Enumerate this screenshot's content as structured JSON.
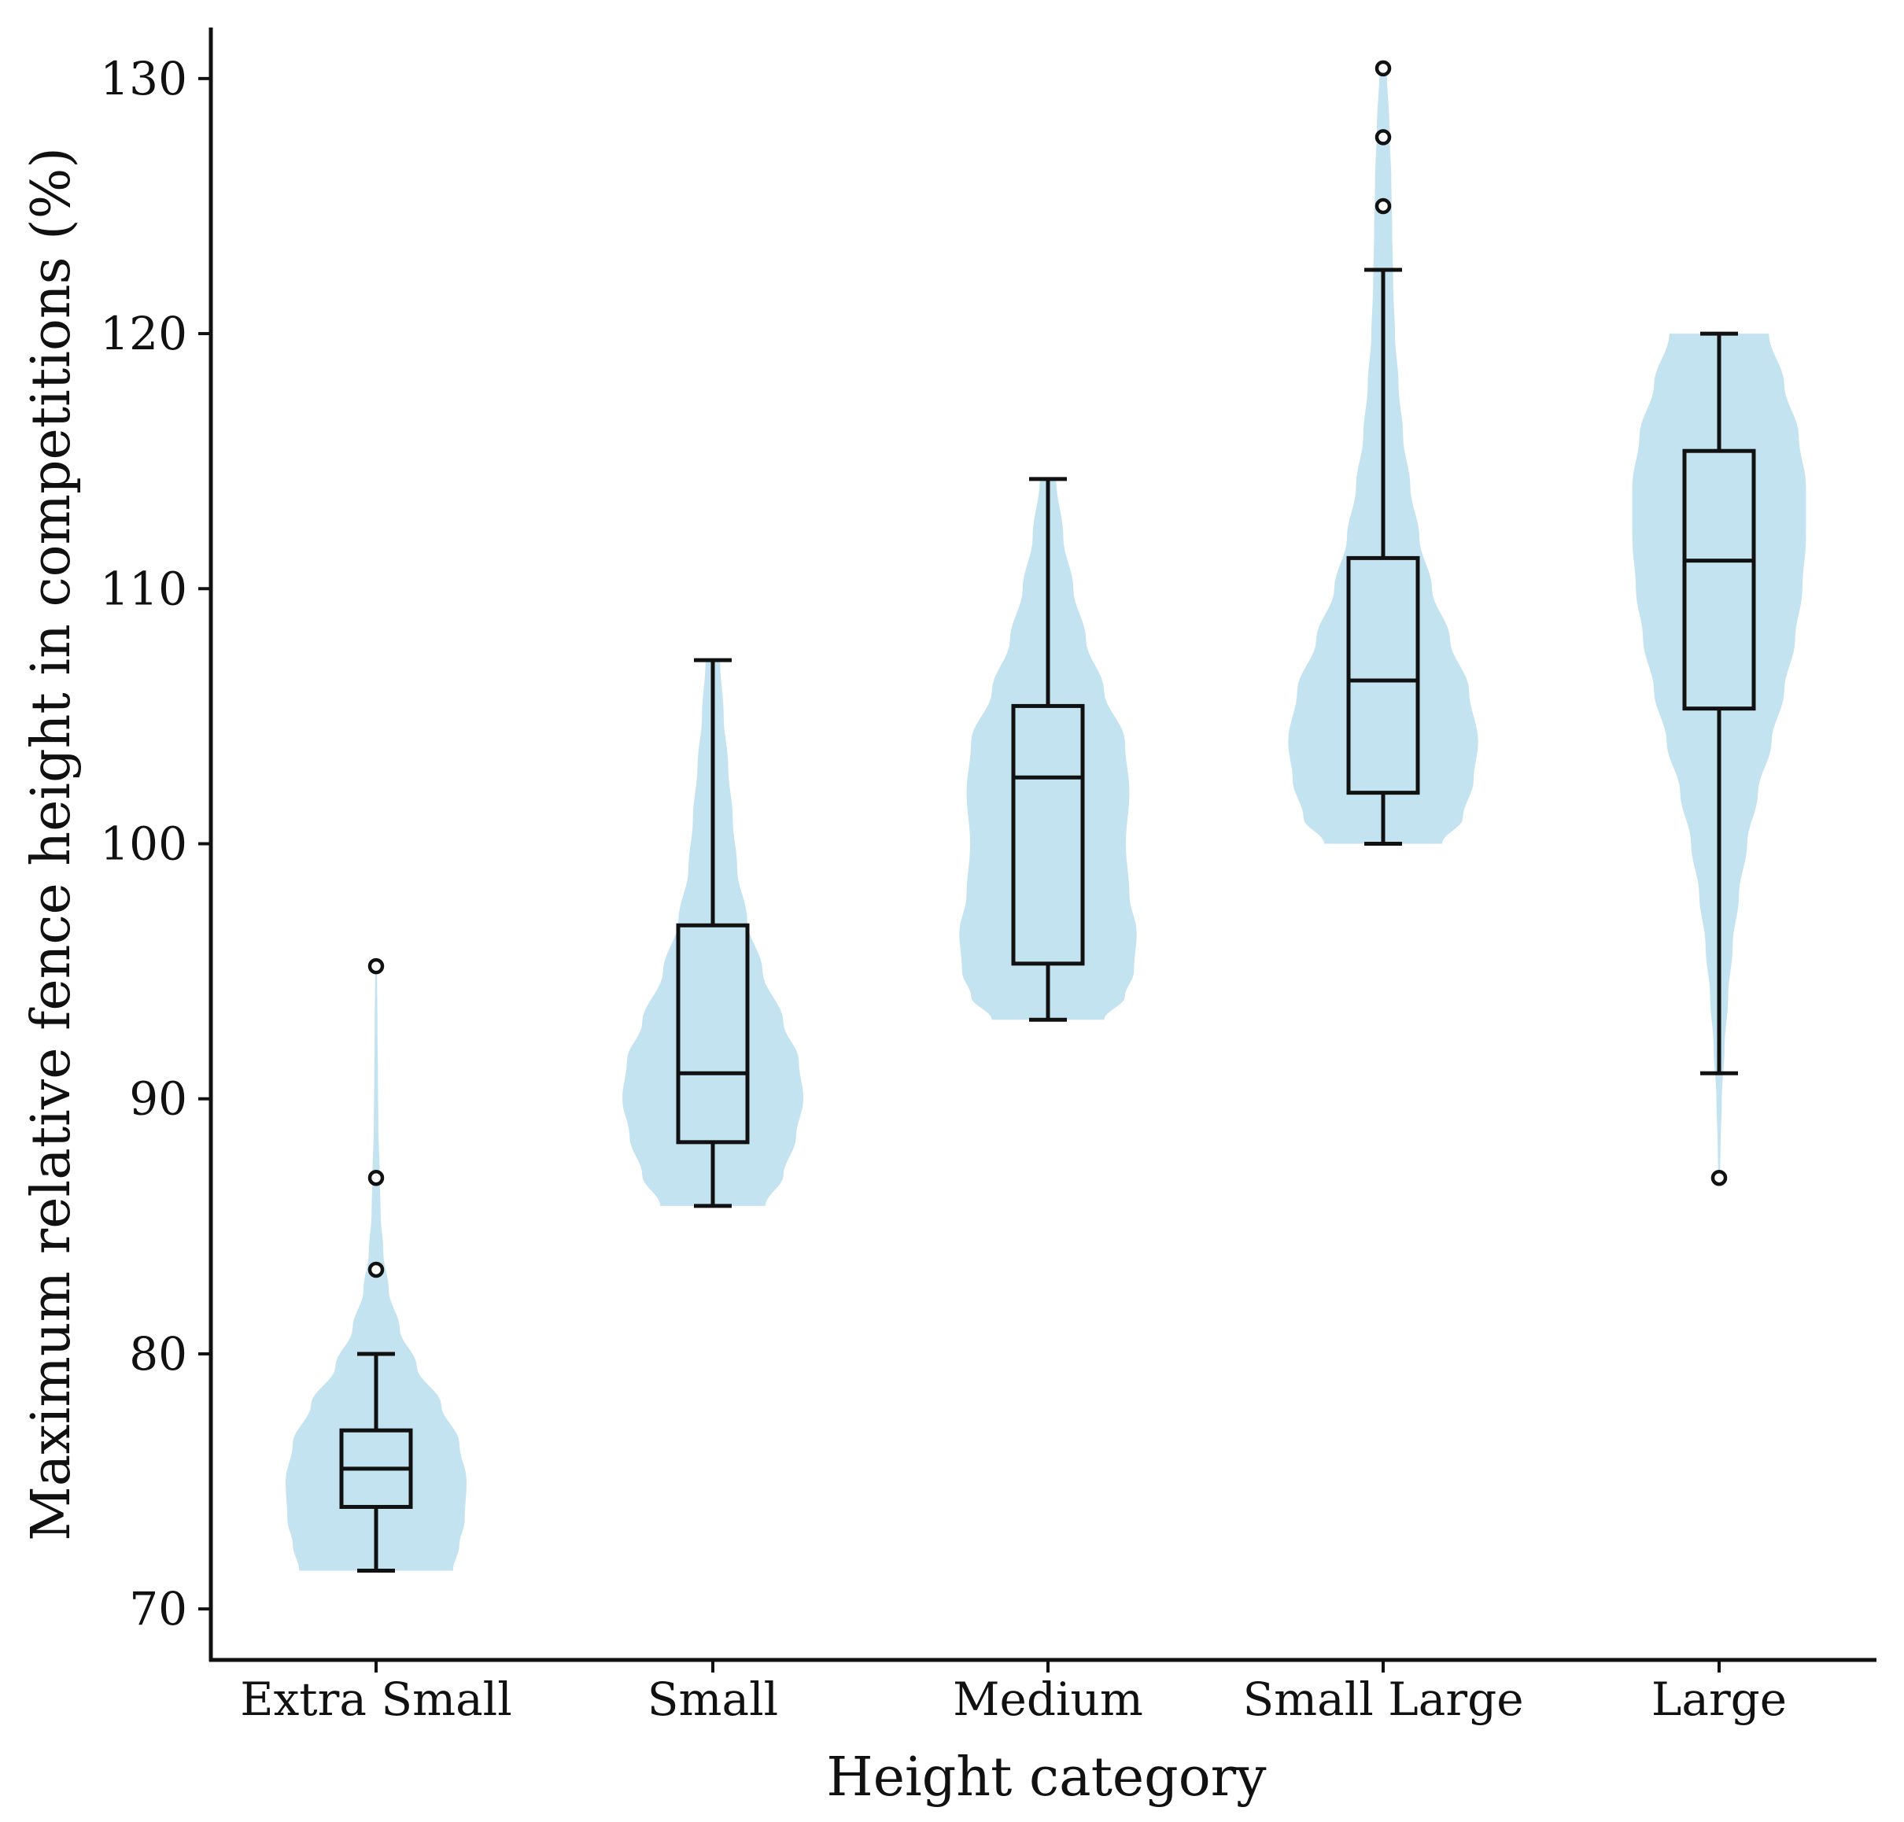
{
  "chart_data": {
    "type": "violin-box",
    "title": "",
    "xlabel": "Height category",
    "ylabel": "Maximum relative fence height in competitions (%)",
    "ylim": [
      68,
      132
    ],
    "yticks": [
      70,
      80,
      90,
      100,
      110,
      120,
      130
    ],
    "grid": false,
    "colors": {
      "violin": "#c4e3f0",
      "lines": "#111111"
    },
    "categories": [
      "Extra Small",
      "Small",
      "Medium",
      "Small Large",
      "Large"
    ],
    "groups": [
      {
        "name": "Extra Small",
        "min": 71.5,
        "q1": 74,
        "median": 75.5,
        "q3": 77,
        "max": 80,
        "outliers": [
          83.3,
          86.9,
          95.2
        ],
        "violin_range": [
          71.5,
          95.2
        ],
        "density": [
          [
            71.5,
            0.85
          ],
          [
            72.5,
            0.92
          ],
          [
            73.5,
            0.98
          ],
          [
            75,
            1.0
          ],
          [
            76.5,
            0.92
          ],
          [
            78,
            0.72
          ],
          [
            79.5,
            0.45
          ],
          [
            81,
            0.26
          ],
          [
            82.5,
            0.14
          ],
          [
            84,
            0.08
          ],
          [
            85.5,
            0.05
          ],
          [
            87,
            0.04
          ],
          [
            89,
            0.025
          ],
          [
            91,
            0.02
          ],
          [
            93,
            0.015
          ],
          [
            95.2,
            0.01
          ]
        ]
      },
      {
        "name": "Small",
        "min": 85.8,
        "q1": 88.3,
        "median": 91,
        "q3": 96.8,
        "max": 107.2,
        "outliers": [],
        "violin_range": [
          85.8,
          107.2
        ],
        "density": [
          [
            85.8,
            0.58
          ],
          [
            87,
            0.78
          ],
          [
            88.5,
            0.92
          ],
          [
            90,
            1.0
          ],
          [
            91.5,
            0.95
          ],
          [
            93,
            0.78
          ],
          [
            95,
            0.55
          ],
          [
            97,
            0.38
          ],
          [
            99,
            0.27
          ],
          [
            101,
            0.22
          ],
          [
            103,
            0.17
          ],
          [
            105,
            0.12
          ],
          [
            107.2,
            0.08
          ]
        ]
      },
      {
        "name": "Medium",
        "min": 93.1,
        "q1": 95.3,
        "median": 102.6,
        "q3": 105.4,
        "max": 114.3,
        "outliers": [],
        "violin_range": [
          93.1,
          114.3
        ],
        "density": [
          [
            93.1,
            0.62
          ],
          [
            94,
            0.85
          ],
          [
            95,
            0.95
          ],
          [
            96.5,
            0.98
          ],
          [
            98,
            0.9
          ],
          [
            100,
            0.86
          ],
          [
            102,
            0.9
          ],
          [
            104,
            0.85
          ],
          [
            106,
            0.62
          ],
          [
            108,
            0.42
          ],
          [
            110,
            0.28
          ],
          [
            112,
            0.17
          ],
          [
            114.3,
            0.09
          ]
        ]
      },
      {
        "name": "Small Large",
        "min": 100,
        "q1": 102,
        "median": 106.4,
        "q3": 111.2,
        "max": 122.5,
        "outliers": [
          125,
          127.7,
          130.4
        ],
        "violin_range": [
          100,
          130.4
        ],
        "density": [
          [
            100,
            0.65
          ],
          [
            101,
            0.88
          ],
          [
            102.5,
            1.0
          ],
          [
            104,
            1.05
          ],
          [
            106,
            0.95
          ],
          [
            108,
            0.74
          ],
          [
            110,
            0.54
          ],
          [
            112,
            0.4
          ],
          [
            114,
            0.3
          ],
          [
            116,
            0.22
          ],
          [
            118,
            0.17
          ],
          [
            120,
            0.13
          ],
          [
            122,
            0.11
          ],
          [
            124,
            0.1
          ],
          [
            126,
            0.09
          ],
          [
            128,
            0.07
          ],
          [
            130.4,
            0.04
          ]
        ]
      },
      {
        "name": "Large",
        "min": 91,
        "q1": 105.3,
        "median": 111.1,
        "q3": 115.4,
        "max": 120,
        "outliers": [
          86.9
        ],
        "violin_range": [
          86.9,
          120
        ],
        "density": [
          [
            86.9,
            0.01
          ],
          [
            88,
            0.015
          ],
          [
            90,
            0.03
          ],
          [
            92,
            0.06
          ],
          [
            94,
            0.1
          ],
          [
            96,
            0.15
          ],
          [
            98,
            0.22
          ],
          [
            100,
            0.31
          ],
          [
            102,
            0.43
          ],
          [
            104,
            0.58
          ],
          [
            106,
            0.72
          ],
          [
            108,
            0.84
          ],
          [
            110,
            0.92
          ],
          [
            112,
            0.96
          ],
          [
            114,
            0.96
          ],
          [
            116,
            0.88
          ],
          [
            118,
            0.72
          ],
          [
            120,
            0.55
          ]
        ]
      }
    ]
  }
}
